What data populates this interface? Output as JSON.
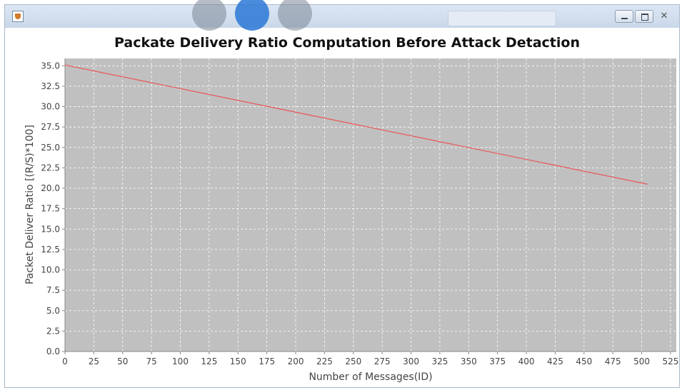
{
  "window": {
    "icon": "java-cup-icon",
    "controls": [
      "minimize-icon",
      "maximize-icon",
      "close-icon"
    ]
  },
  "chart_data": {
    "type": "line",
    "title": "Packate Delivery Ratio Computation Before Attack Detaction",
    "xlabel": "Number of Messages(ID)",
    "ylabel": "Packet Deliver Ratio [(R/S)*100]",
    "xlim": [
      0,
      530
    ],
    "ylim": [
      0,
      35.9
    ],
    "xticks": [
      "0",
      "25",
      "50",
      "75",
      "100",
      "125",
      "150",
      "175",
      "200",
      "225",
      "250",
      "275",
      "300",
      "325",
      "350",
      "375",
      "400",
      "425",
      "450",
      "475",
      "500",
      "525"
    ],
    "yticks": [
      "0.0",
      "2.5",
      "5.0",
      "7.5",
      "10.0",
      "12.5",
      "15.0",
      "17.5",
      "20.0",
      "22.5",
      "25.0",
      "27.5",
      "30.0",
      "32.5",
      "35.0"
    ],
    "grid": true,
    "plot_background": "#c0c0c0",
    "series": [
      {
        "color": "#e85c5c",
        "x": [
          0,
          505
        ],
        "y": [
          35.1,
          20.5
        ]
      }
    ]
  }
}
